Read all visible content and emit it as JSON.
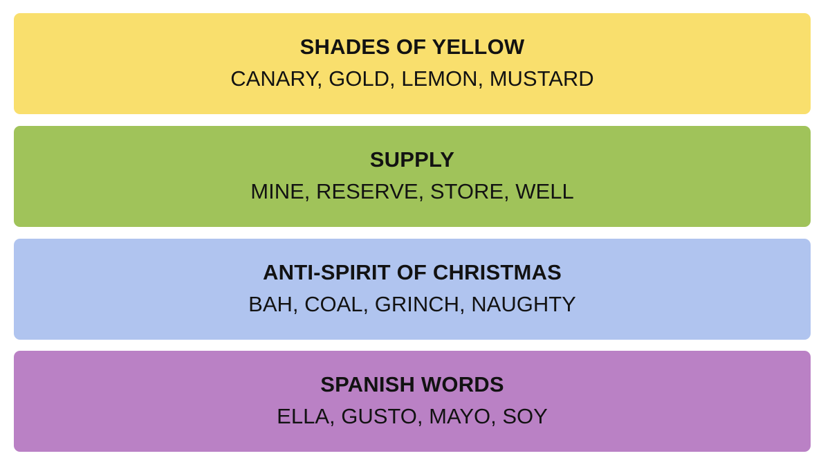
{
  "groups": [
    {
      "title": "SHADES OF YELLOW",
      "words": "CANARY, GOLD, LEMON, MUSTARD",
      "color": "#f9df6d"
    },
    {
      "title": "SUPPLY",
      "words": "MINE, RESERVE, STORE, WELL",
      "color": "#a0c35a"
    },
    {
      "title": "ANTI-SPIRIT OF CHRISTMAS",
      "words": "BAH, COAL, GRINCH, NAUGHTY",
      "color": "#b0c4ef"
    },
    {
      "title": "SPANISH WORDS",
      "words": "ELLA, GUSTO, MAYO, SOY",
      "color": "#ba81c5"
    }
  ]
}
